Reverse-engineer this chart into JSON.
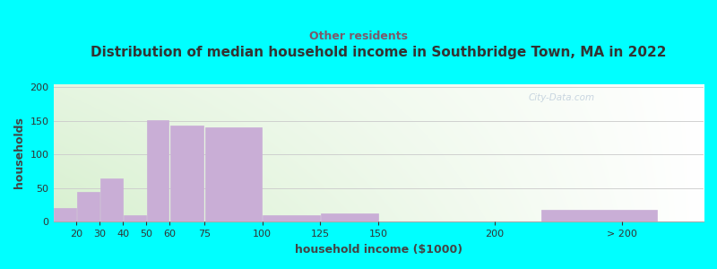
{
  "title": "Distribution of median household income in Southbridge Town, MA in 2022",
  "subtitle": "Other residents",
  "xlabel": "household income ($1000)",
  "ylabel": "households",
  "background_outer": "#00FFFF",
  "background_inner_color": "#d8f0d0",
  "bar_color": "#c9aed6",
  "bar_edge_color": "#c9aed6",
  "title_color": "#333333",
  "subtitle_color": "#7a5a6a",
  "axis_label_color": "#444444",
  "tick_label_color": "#333333",
  "watermark": "City-Data.com",
  "values": [
    20,
    44,
    65,
    10,
    151,
    143,
    140,
    10,
    12,
    0,
    18
  ],
  "bar_lefts": [
    10,
    20,
    30,
    40,
    50,
    60,
    75,
    100,
    125,
    150,
    220
  ],
  "bar_widths": [
    10,
    10,
    10,
    10,
    10,
    15,
    25,
    25,
    25,
    25,
    50
  ],
  "xlim_left": 10,
  "xlim_right": 290,
  "ylim": [
    0,
    205
  ],
  "yticks": [
    0,
    50,
    100,
    150,
    200
  ],
  "xtick_positions": [
    20,
    30,
    40,
    50,
    60,
    75,
    100,
    125,
    150,
    200,
    255
  ],
  "xtick_labels": [
    "20",
    "30",
    "40",
    "50",
    "60",
    "75",
    "100",
    "125",
    "150",
    "200",
    "> 200"
  ]
}
